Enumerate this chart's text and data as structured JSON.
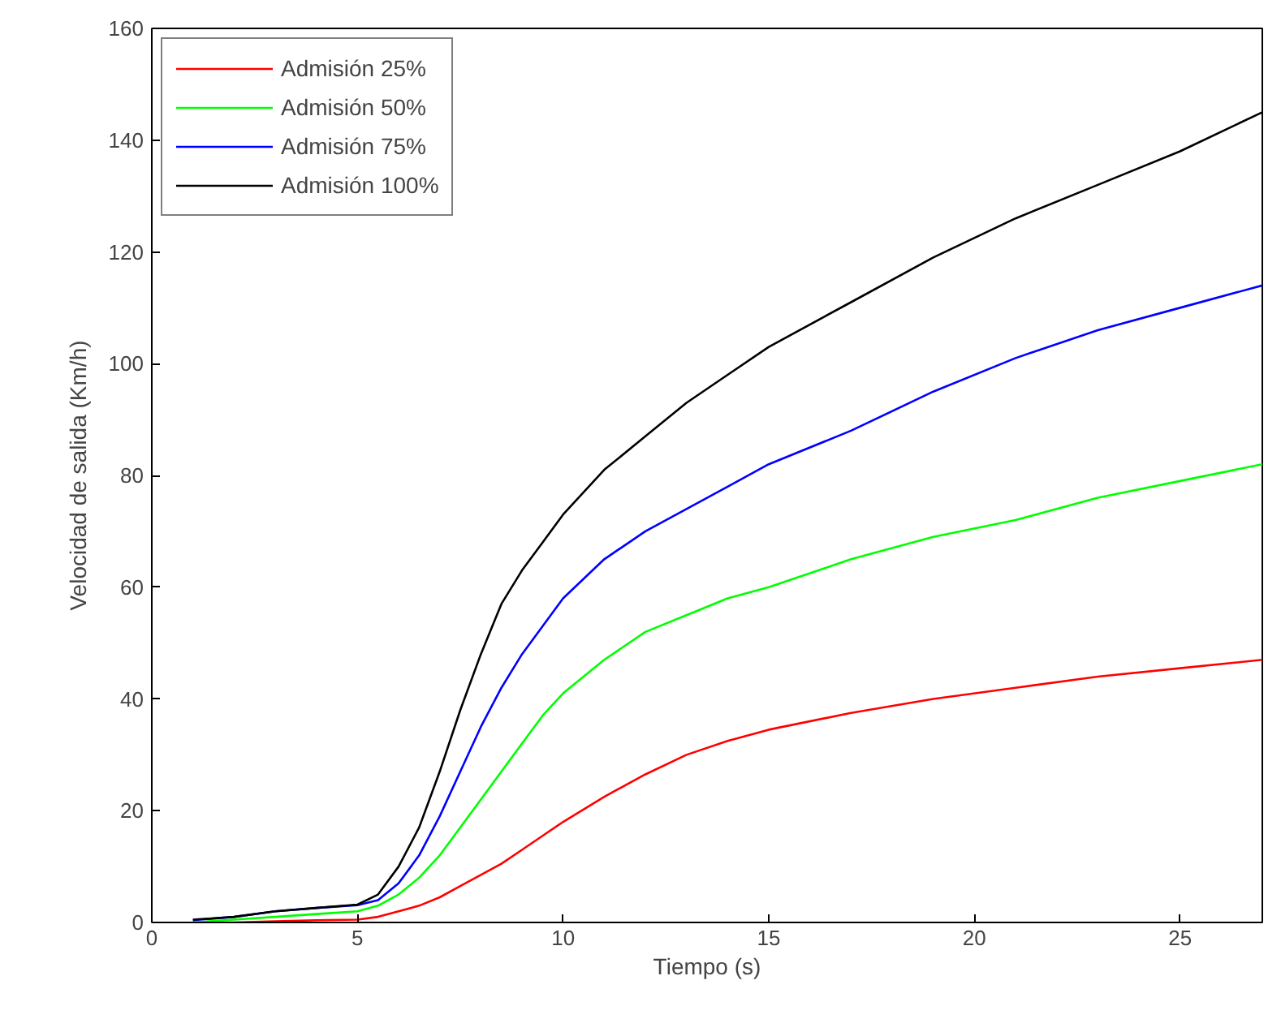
{
  "chart_data": {
    "type": "line",
    "xlabel": "Tiempo (s)",
    "ylabel": "Velocidad de salida (Km/h)",
    "x": [
      1,
      2,
      3,
      4,
      5,
      5.5,
      6,
      6.5,
      7,
      7.5,
      8,
      8.5,
      9,
      9.5,
      10,
      11,
      12,
      13,
      14,
      15,
      17,
      19,
      21,
      23,
      25,
      27
    ],
    "series": [
      {
        "name": "Admisión 25%",
        "color": "#ff0000",
        "values": [
          0,
          0,
          0.2,
          0.4,
          0.5,
          1,
          2,
          3,
          4.5,
          6.5,
          8.5,
          10.5,
          13,
          15.5,
          18,
          22.5,
          26.5,
          30,
          32.5,
          34.5,
          37.5,
          40,
          42,
          44,
          45.5,
          47
        ]
      },
      {
        "name": "Admisión 50%",
        "color": "#00ff00",
        "values": [
          0,
          0.5,
          1,
          1.5,
          2,
          3,
          5,
          8,
          12,
          17,
          22,
          27,
          32,
          37,
          41,
          47,
          52,
          55,
          58,
          60,
          65,
          69,
          72,
          76,
          79,
          82
        ]
      },
      {
        "name": "Admisión 75%",
        "color": "#0000ff",
        "values": [
          0.4,
          1,
          2,
          2.6,
          3.1,
          4,
          7,
          12,
          19,
          27,
          35,
          42,
          48,
          53,
          58,
          65,
          70,
          74,
          78,
          82,
          88,
          95,
          101,
          106,
          110,
          114
        ]
      },
      {
        "name": "Admisión 100%",
        "color": "#000000",
        "values": [
          0.5,
          1,
          2,
          2.6,
          3.2,
          5,
          10,
          17,
          27,
          38,
          48,
          57,
          63,
          68,
          73,
          81,
          87,
          93,
          98,
          103,
          111,
          119,
          126,
          132,
          138,
          145
        ]
      }
    ],
    "xlim": [
      0,
      27
    ],
    "ylim": [
      0,
      160
    ],
    "xticks": [
      0,
      5,
      10,
      15,
      20,
      25
    ],
    "yticks": [
      0,
      20,
      40,
      60,
      80,
      100,
      120,
      140,
      160
    ],
    "grid": false,
    "legend": "top left",
    "marker": "none",
    "line_style": "solid"
  }
}
